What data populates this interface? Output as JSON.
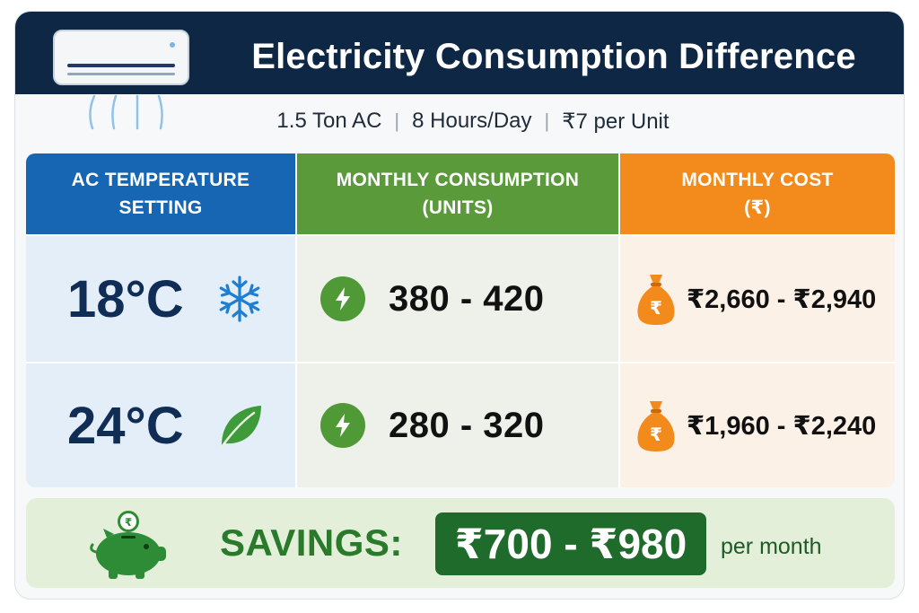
{
  "header": {
    "title": "Electricity Consumption Difference",
    "subtitle_items": [
      "1.5 Ton AC",
      "8 Hours/Day",
      "₹7 per Unit"
    ],
    "subtitle_separator": "|",
    "icon": "air-conditioner-icon"
  },
  "table": {
    "columns": [
      {
        "label_line1": "AC TEMPERATURE",
        "label_line2": "SETTING",
        "color": "#1666b3"
      },
      {
        "label_line1": "MONTHLY CONSUMPTION",
        "label_line2": "(UNITS)",
        "color": "#5a9a3b"
      },
      {
        "label_line1": "MONTHLY COST",
        "label_line2": "(₹)",
        "color": "#f28a1c"
      }
    ],
    "rows": [
      {
        "temperature": "18°C",
        "temp_icon": "snowflake-icon",
        "units": "380 - 420",
        "units_icon": "lightning-icon",
        "cost": "₹2,660 - ₹2,940",
        "cost_icon": "money-bag-icon"
      },
      {
        "temperature": "24°C",
        "temp_icon": "leaf-icon",
        "units": "280 - 320",
        "units_icon": "lightning-icon",
        "cost": "₹1,960 - ₹2,240",
        "cost_icon": "money-bag-icon"
      }
    ]
  },
  "savings": {
    "label": "SAVINGS:",
    "amount": "₹700 - ₹980",
    "suffix": "per month",
    "icon": "piggy-bank-icon",
    "coin_symbol": "₹",
    "bag_symbol": "₹"
  },
  "colors": {
    "header_bg": "#0d2745",
    "temp_col": "#1666b3",
    "units_col": "#5a9a3b",
    "cost_col": "#f28a1c",
    "savings_green": "#1f6b2b"
  }
}
